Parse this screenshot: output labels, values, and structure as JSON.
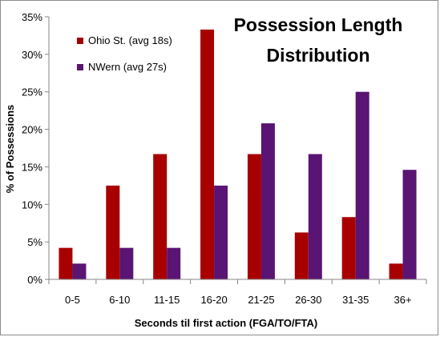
{
  "chart_data": {
    "type": "bar",
    "title_lines": [
      "Possession Length",
      "Distribution"
    ],
    "xlabel": "Seconds til first action (FGA/TO/FTA)",
    "ylabel": "% of Possessions",
    "ylim": [
      0,
      35
    ],
    "yticks": [
      0,
      5,
      10,
      15,
      20,
      25,
      30,
      35
    ],
    "ytick_labels": [
      "0%",
      "5%",
      "10%",
      "15%",
      "20%",
      "25%",
      "30%",
      "35%"
    ],
    "categories": [
      "0-5",
      "6-10",
      "11-15",
      "16-20",
      "21-25",
      "26-30",
      "31-35",
      "36+"
    ],
    "series": [
      {
        "name": "Ohio St. (avg 18s)",
        "color": "#a80000",
        "values": [
          4.2,
          12.5,
          16.7,
          33.3,
          16.7,
          6.25,
          8.3,
          2.1
        ]
      },
      {
        "name": "NWern (avg 27s)",
        "color": "#5a1473",
        "values": [
          2.1,
          4.2,
          4.2,
          12.5,
          20.8,
          16.7,
          25.0,
          14.6
        ]
      }
    ],
    "legend_position": "top-left",
    "grid": false
  }
}
